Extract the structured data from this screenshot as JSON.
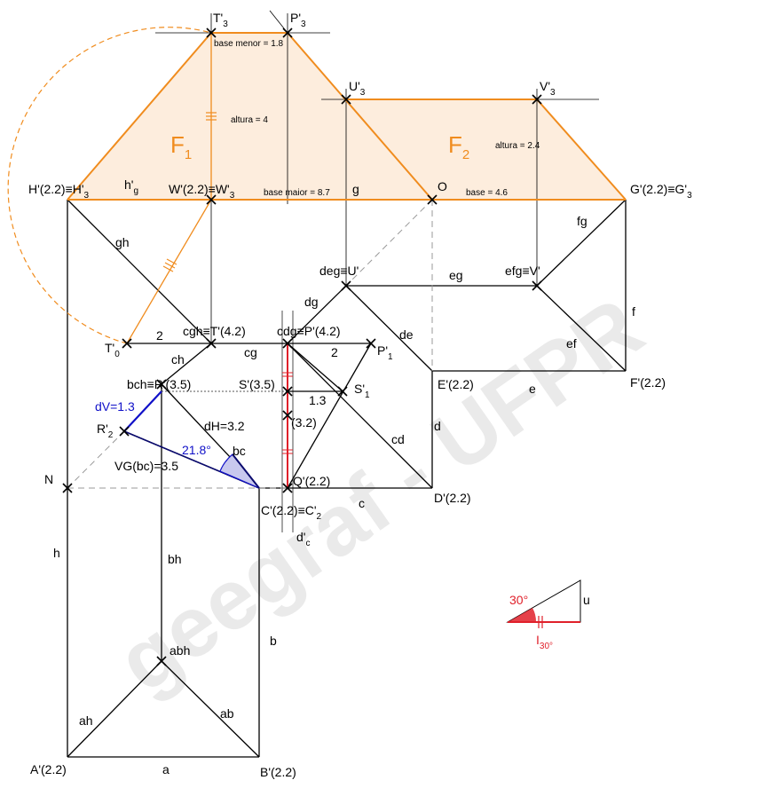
{
  "watermark": "geegraf - UFPR",
  "faces": {
    "f1": {
      "label": "F",
      "sub": "1"
    },
    "f2": {
      "label": "F",
      "sub": "2"
    }
  },
  "annotations": {
    "base_menor": "base menor = 1.8",
    "altura_f1": "altura = 4",
    "base_maior": "base maior = 8.7",
    "altura_f2": "altura = 2.4",
    "base_f2": "base = 4.6",
    "dV": "dV=1.3",
    "dH": "dH=3.2",
    "angle_blue": "21.8°",
    "vg": "VG(bc)=3.5",
    "num_2a": "2",
    "num_2b": "2",
    "num_13": "1.3",
    "num_32": "(3.2)",
    "angle_red": "30°"
  },
  "points": {
    "T3": {
      "main": "T'",
      "sub": "3"
    },
    "P3": {
      "main": "P'",
      "sub": "3"
    },
    "U3": {
      "main": "U'",
      "sub": "3"
    },
    "V3": {
      "main": "V'",
      "sub": "3"
    },
    "H": {
      "main": "H'(2.2)≡H'",
      "sub": "3"
    },
    "hg": {
      "main": "h'",
      "sub": "g"
    },
    "W": {
      "main": "W'(2.2)≡W'",
      "sub": "3"
    },
    "g": {
      "main": "g",
      "sub": ""
    },
    "O": {
      "main": "O",
      "sub": ""
    },
    "G": {
      "main": "G'(2.2)≡G'",
      "sub": "3"
    },
    "gh": {
      "main": "gh",
      "sub": ""
    },
    "fg": {
      "main": "fg",
      "sub": ""
    },
    "deg": {
      "main": "deg≡U'",
      "sub": ""
    },
    "eg": {
      "main": "eg",
      "sub": ""
    },
    "efg": {
      "main": "efg≡V'",
      "sub": ""
    },
    "dg": {
      "main": "dg",
      "sub": ""
    },
    "f": {
      "main": "f",
      "sub": ""
    },
    "T0": {
      "main": "T'",
      "sub": "0"
    },
    "cgh": {
      "main": "cgh≡T'(4.2)",
      "sub": ""
    },
    "cdg": {
      "main": "cdg≡P'(4.2)",
      "sub": ""
    },
    "de": {
      "main": "de",
      "sub": ""
    },
    "ef": {
      "main": "ef",
      "sub": ""
    },
    "P1": {
      "main": "P'",
      "sub": "1"
    },
    "ch": {
      "main": "ch",
      "sub": ""
    },
    "cg": {
      "main": "cg",
      "sub": ""
    },
    "bch": {
      "main": "bch≡R'(3.5)",
      "sub": ""
    },
    "S": {
      "main": "S'(3.5)",
      "sub": ""
    },
    "S1": {
      "main": "S'",
      "sub": "1"
    },
    "E": {
      "main": "E'(2.2)",
      "sub": ""
    },
    "e": {
      "main": "e",
      "sub": ""
    },
    "F": {
      "main": "F'(2.2)",
      "sub": ""
    },
    "R2": {
      "main": "R'",
      "sub": "2"
    },
    "d": {
      "main": "d",
      "sub": ""
    },
    "cd": {
      "main": "cd",
      "sub": ""
    },
    "bc": {
      "main": "bc",
      "sub": ""
    },
    "N": {
      "main": "N",
      "sub": ""
    },
    "Q": {
      "main": "Q'(2.2)",
      "sub": ""
    },
    "D": {
      "main": "D'(2.2)",
      "sub": ""
    },
    "C": {
      "main": "C'(2.2)≡C'",
      "sub": "2"
    },
    "c": {
      "main": "c",
      "sub": ""
    },
    "dc": {
      "main": "d'",
      "sub": "c"
    },
    "h": {
      "main": "h",
      "sub": ""
    },
    "bh": {
      "main": "bh",
      "sub": ""
    },
    "b": {
      "main": "b",
      "sub": ""
    },
    "u": {
      "main": "u",
      "sub": ""
    },
    "I30": {
      "main": "I",
      "sub": "30°"
    },
    "abh": {
      "main": "abh",
      "sub": ""
    },
    "ah": {
      "main": "ah",
      "sub": ""
    },
    "ab": {
      "main": "ab",
      "sub": ""
    },
    "A": {
      "main": "A'(2.2)",
      "sub": ""
    },
    "a": {
      "main": "a",
      "sub": ""
    },
    "B": {
      "main": "B'(2.2)",
      "sub": ""
    }
  }
}
